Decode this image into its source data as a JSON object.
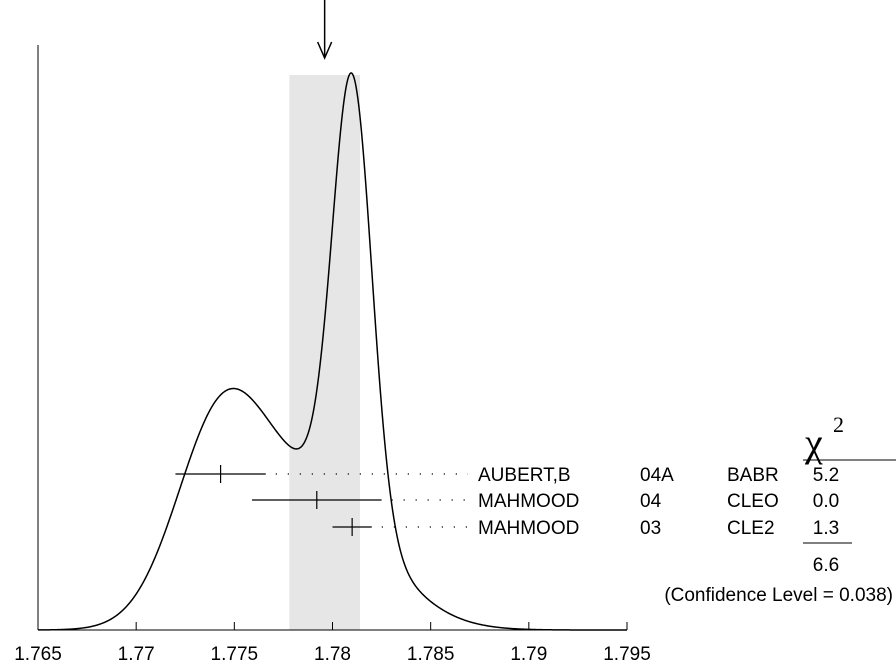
{
  "chart_data": {
    "type": "ideogram",
    "x_tick_labels": [
      "1.765",
      "1.77",
      "1.775",
      "1.78",
      "1.785",
      "1.79",
      "1.795"
    ],
    "xlim": [
      1.765,
      1.795
    ],
    "average": {
      "value": 1.7796,
      "band": [
        1.7778,
        1.7814
      ]
    },
    "chi2_header": "χ",
    "chi2_power": "2",
    "measurements": [
      {
        "author": "AUBERT,B",
        "year": "04A",
        "tecn": "BABR",
        "value": 1.7743,
        "error": 0.0023,
        "chi2": "5.2"
      },
      {
        "author": "MAHMOOD",
        "year": "04",
        "tecn": "CLEO",
        "value": 1.7792,
        "error": 0.0033,
        "chi2": "0.0"
      },
      {
        "author": "MAHMOOD",
        "year": "03",
        "tecn": "CLE2",
        "value": 1.781,
        "error": 0.001,
        "chi2": "1.3"
      }
    ],
    "chi2_total": "6.6",
    "confidence_level": "(Confidence Level = 0.038)"
  }
}
